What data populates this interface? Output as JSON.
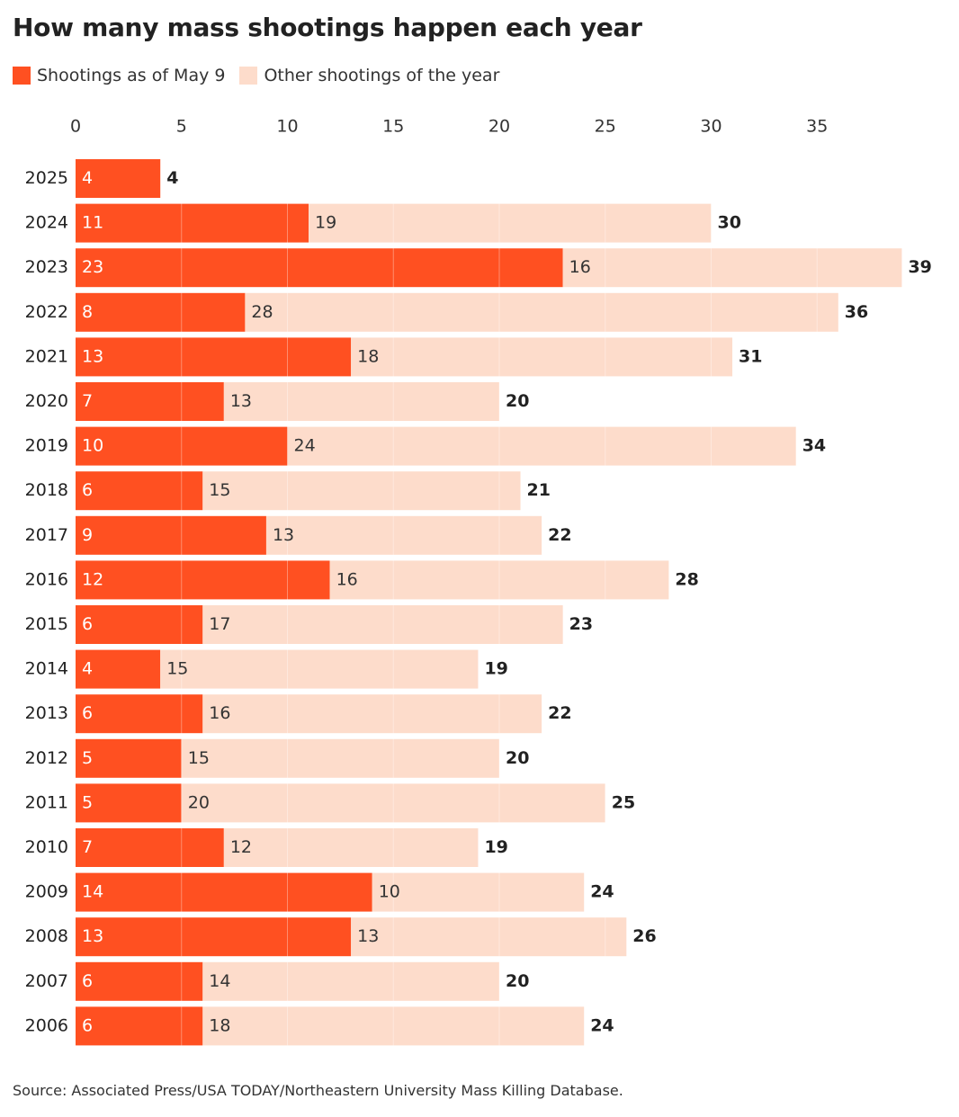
{
  "chart_data": {
    "type": "bar",
    "orientation": "horizontal",
    "stacked": true,
    "title": "How many mass shootings happen each year",
    "categories": [
      "2025",
      "2024",
      "2023",
      "2022",
      "2021",
      "2020",
      "2019",
      "2018",
      "2017",
      "2016",
      "2015",
      "2014",
      "2013",
      "2012",
      "2011",
      "2010",
      "2009",
      "2008",
      "2007",
      "2006"
    ],
    "series": [
      {
        "name": "Shootings as of May 9",
        "color": "#ff5021",
        "values": [
          4,
          11,
          23,
          8,
          13,
          7,
          10,
          6,
          9,
          12,
          6,
          4,
          6,
          5,
          5,
          7,
          14,
          13,
          6,
          6
        ]
      },
      {
        "name": "Other shootings of the year",
        "color": "#fddccb",
        "values": [
          0,
          19,
          16,
          28,
          18,
          13,
          24,
          15,
          13,
          16,
          17,
          15,
          16,
          15,
          20,
          12,
          10,
          13,
          14,
          18
        ]
      }
    ],
    "totals": [
      4,
      30,
      39,
      36,
      31,
      20,
      34,
      21,
      22,
      28,
      23,
      19,
      22,
      20,
      25,
      19,
      24,
      26,
      20,
      24
    ],
    "xlim": [
      0,
      39
    ],
    "xticks": [
      0,
      5,
      10,
      15,
      20,
      25,
      30,
      35
    ],
    "xaxis_position": "top",
    "legend_position": "top-left",
    "gridlines": true,
    "xlabel": "",
    "ylabel": ""
  },
  "source": "Source: Associated Press/USA TODAY/Northeastern University Mass Killing Database."
}
